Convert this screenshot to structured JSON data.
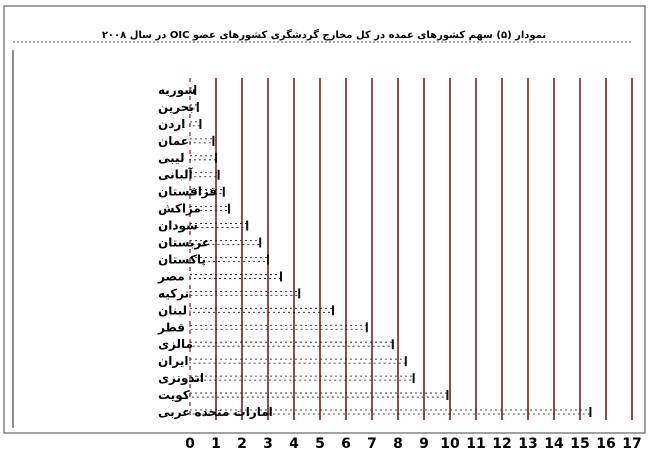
{
  "chart_data": {
    "type": "bar",
    "orientation": "horizontal",
    "title": "نمودار (۵) سهم کشورهای عمده در کل مخارج گردشگری کشورهای عضو OIC در سال ۲۰۰۸",
    "categories": [
      "سوریه",
      "بحرین",
      "اردن",
      "عمان",
      "لیبی",
      "آلبانی",
      "قزاقستان",
      "مراکش",
      "سودان",
      "عربستان",
      "پاکستان",
      "مصر",
      "ترکیه",
      "لبنان",
      "قطر",
      "مالزی",
      "ایران",
      "اندونزی",
      "کویت",
      "امارات متحده عربی"
    ],
    "values": [
      0.2,
      0.3,
      0.4,
      0.9,
      1.0,
      1.1,
      1.3,
      1.5,
      2.2,
      2.7,
      3.0,
      3.5,
      4.2,
      5.5,
      6.8,
      7.8,
      8.3,
      8.6,
      9.9,
      15.4
    ],
    "xticks": [
      0,
      1,
      2,
      3,
      4,
      5,
      6,
      7,
      8,
      9,
      10,
      11,
      12,
      13,
      14,
      15,
      16,
      17
    ],
    "xlim": [
      0,
      17
    ],
    "grid": true,
    "colors": {
      "gridline": "#7a1f1f",
      "bar": "#111111",
      "text": "#000000"
    }
  }
}
